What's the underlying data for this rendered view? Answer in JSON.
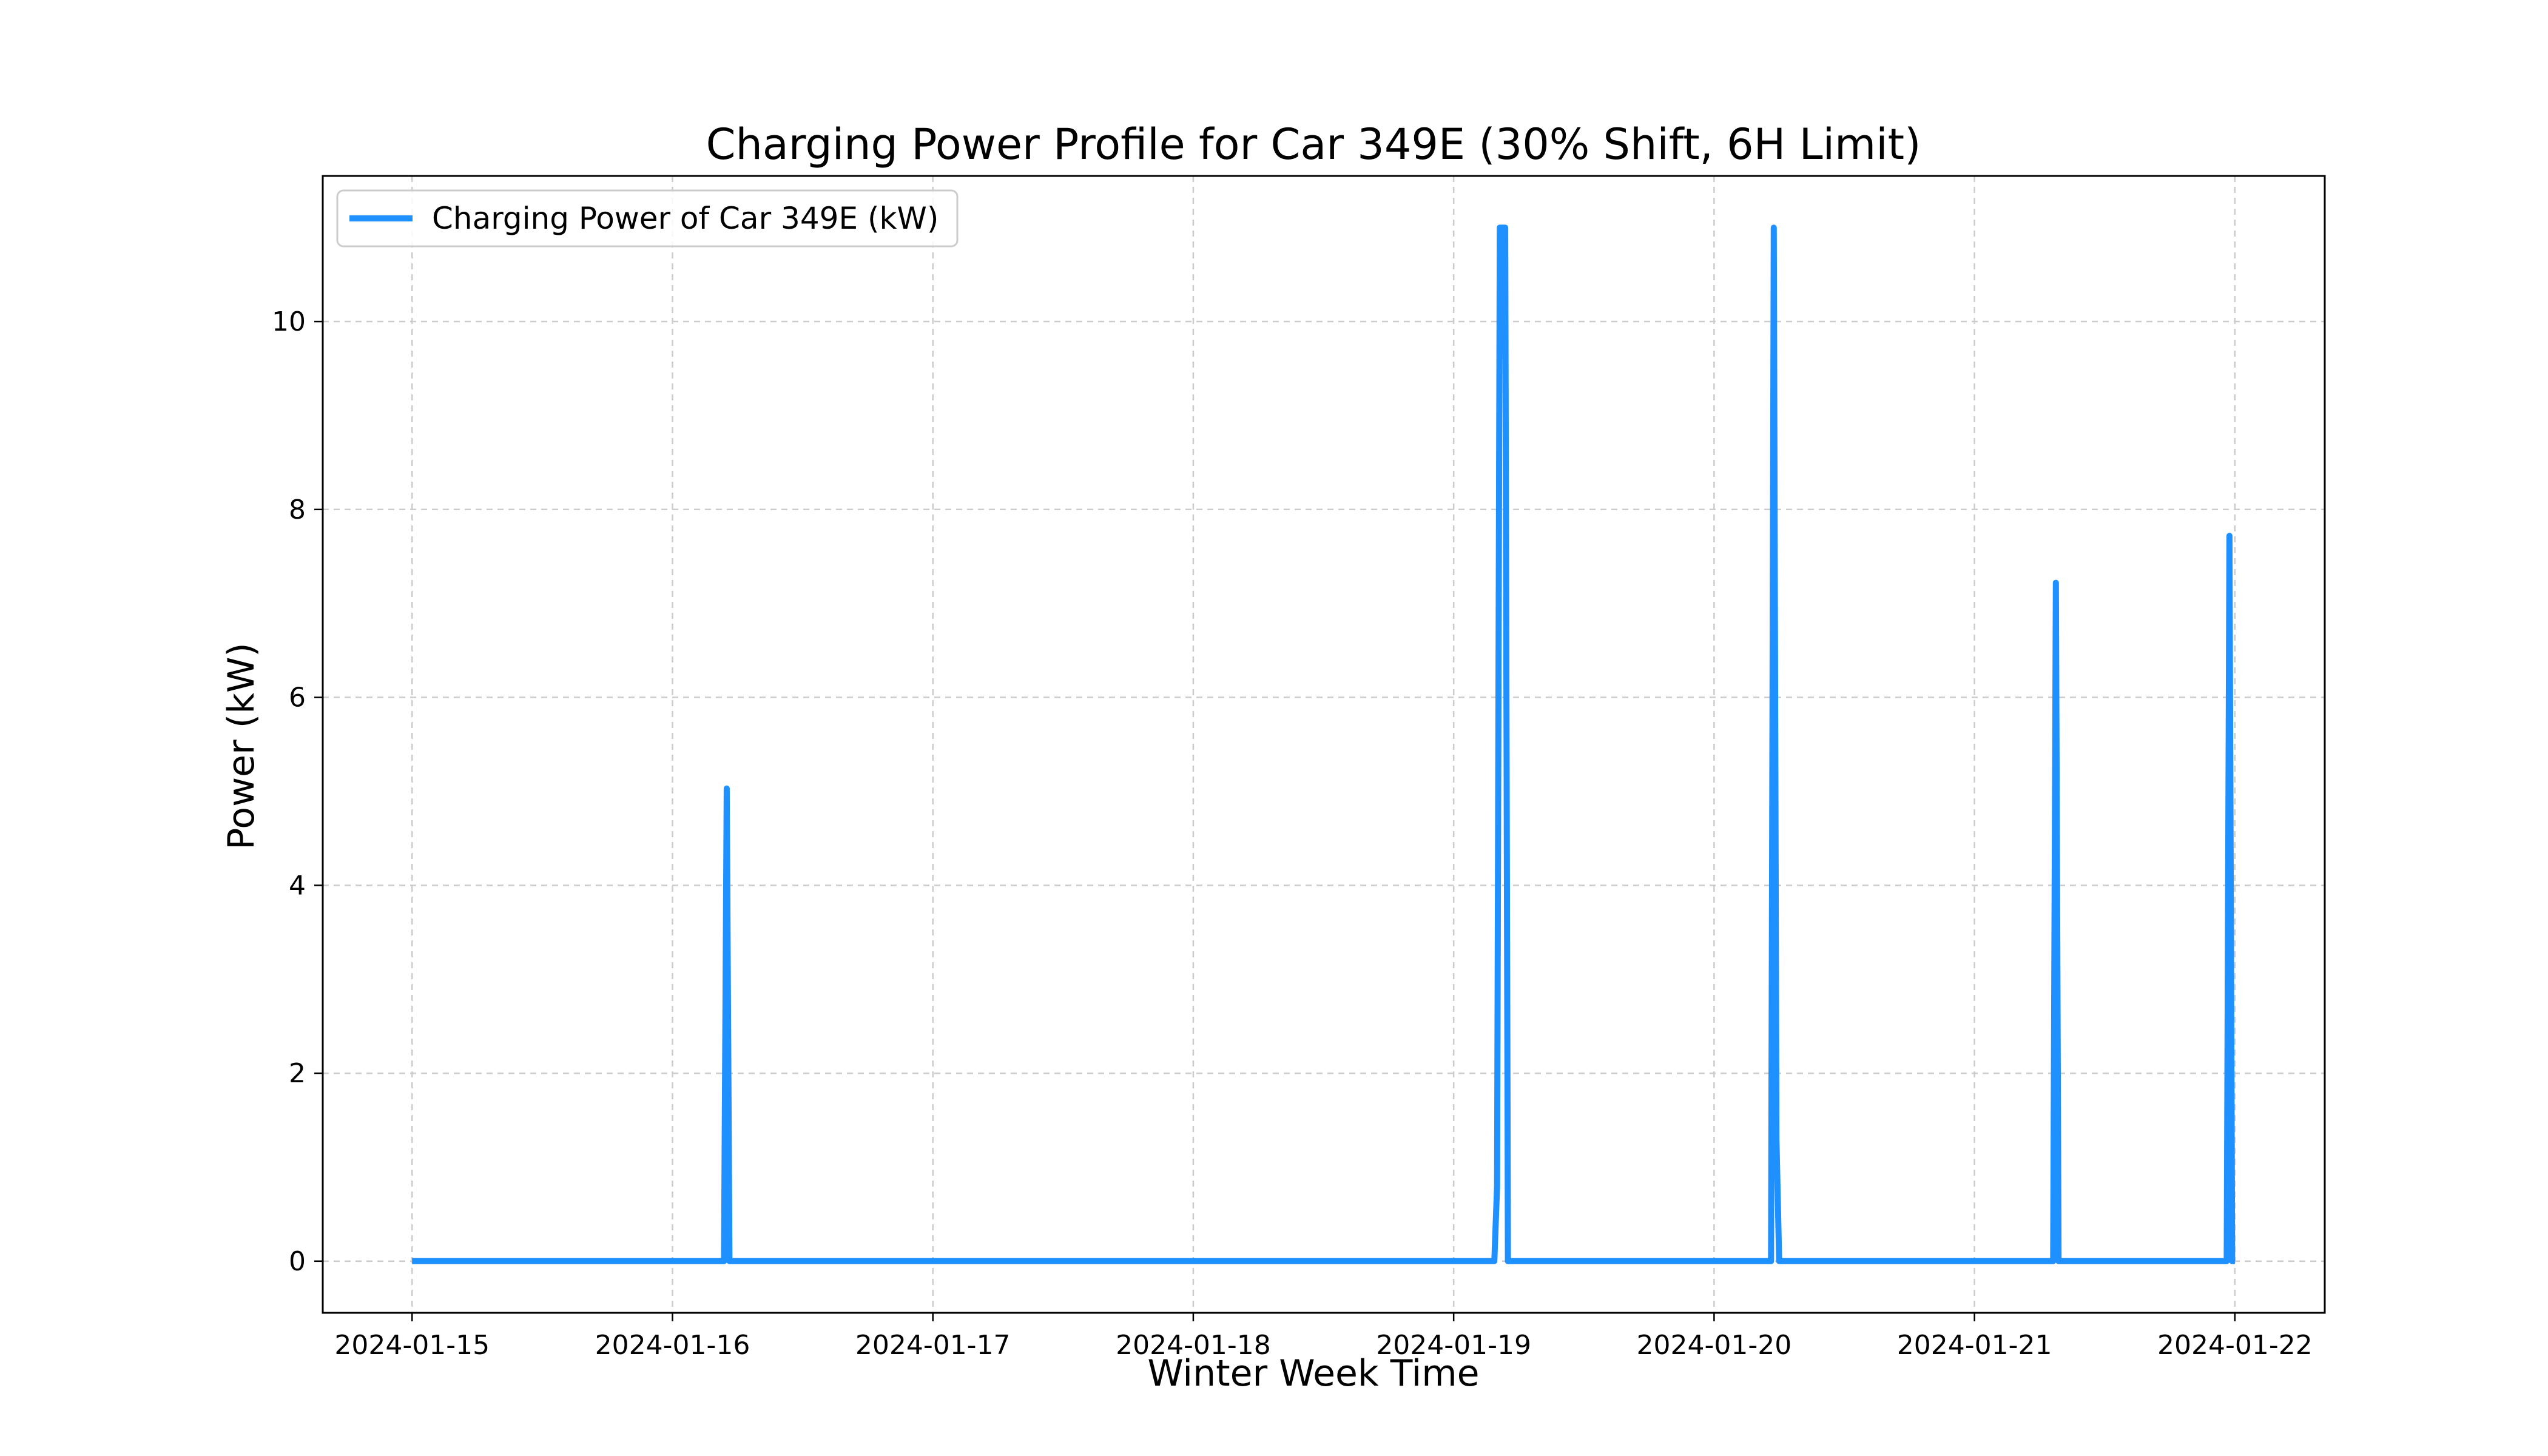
{
  "chart_data": {
    "type": "line",
    "title": "Charging Power Profile for Car 349E (30% Shift, 6H Limit)",
    "xlabel": "Winter Week Time",
    "ylabel": "Power (kW)",
    "x_ticks": [
      "2024-01-15",
      "2024-01-16",
      "2024-01-17",
      "2024-01-18",
      "2024-01-19",
      "2024-01-20",
      "2024-01-21",
      "2024-01-22"
    ],
    "xlim": [
      "2024-01-14 15:46",
      "2024-01-22 08:17"
    ],
    "y_ticks": [
      0,
      2,
      4,
      6,
      8,
      10
    ],
    "ylim": [
      -0.55,
      11.55
    ],
    "grid": true,
    "legend_position": "top-left",
    "series": [
      {
        "name": "Charging Power of Car 349E (kW)",
        "color": "#1e90ff",
        "points": [
          {
            "x": "2024-01-15 00:00",
            "y": 0
          },
          {
            "x": "2024-01-16 04:45",
            "y": 0
          },
          {
            "x": "2024-01-16 05:00",
            "y": 5.03
          },
          {
            "x": "2024-01-16 05:15",
            "y": 0
          },
          {
            "x": "2024-01-19 03:45",
            "y": 0
          },
          {
            "x": "2024-01-19 04:00",
            "y": 0.8
          },
          {
            "x": "2024-01-19 04:15",
            "y": 11.0
          },
          {
            "x": "2024-01-19 04:45",
            "y": 11.0
          },
          {
            "x": "2024-01-19 05:00",
            "y": 0
          },
          {
            "x": "2024-01-20 05:15",
            "y": 0
          },
          {
            "x": "2024-01-20 05:30",
            "y": 11.0
          },
          {
            "x": "2024-01-20 05:45",
            "y": 1.3
          },
          {
            "x": "2024-01-20 06:00",
            "y": 0
          },
          {
            "x": "2024-01-21 07:15",
            "y": 0
          },
          {
            "x": "2024-01-21 07:30",
            "y": 7.22
          },
          {
            "x": "2024-01-21 07:45",
            "y": 0
          },
          {
            "x": "2024-01-21 23:15",
            "y": 0
          },
          {
            "x": "2024-01-21 23:30",
            "y": 7.72
          },
          {
            "x": "2024-01-21 23:45",
            "y": 0
          },
          {
            "x": "2024-01-22 00:00",
            "y": 0
          }
        ]
      }
    ]
  }
}
